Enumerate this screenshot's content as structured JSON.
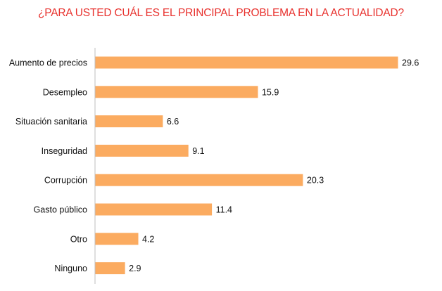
{
  "chart_data": {
    "type": "bar",
    "orientation": "horizontal",
    "title": "¿PARA USTED CUÁL ES EL PRINCIPAL PROBLEMA EN LA ACTUALIDAD?",
    "categories": [
      "Aumento de precios",
      "Desempleo",
      "Situación sanitaria",
      "Inseguridad",
      "Corrupción",
      "Gasto público",
      "Otro",
      "Ninguno"
    ],
    "values": [
      29.6,
      15.9,
      6.6,
      9.1,
      20.3,
      11.4,
      4.2,
      2.9
    ],
    "xlim": [
      0,
      30
    ],
    "grid": false,
    "colors": {
      "bar": "#fbab60",
      "title": "#e8322e",
      "axis": "#bfbfbf"
    }
  }
}
